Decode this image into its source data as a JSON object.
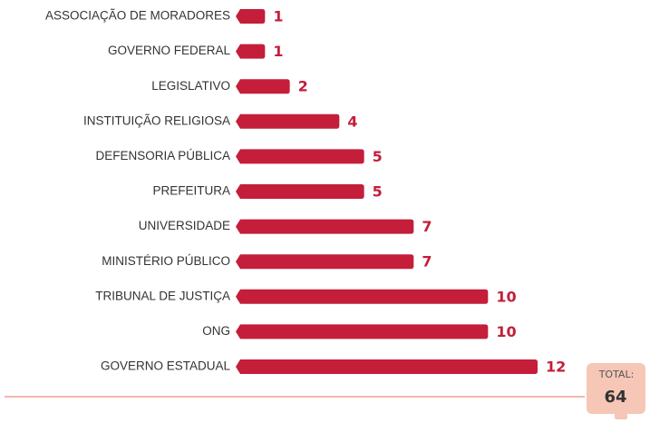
{
  "chart_data": {
    "type": "hbar",
    "categories": [
      "ASSOCIAÇÃO DE MORADORES",
      "GOVERNO FEDERAL",
      "LEGISLATIVO",
      "INSTITUIÇÃO RELIGIOSA",
      "DEFENSORIA PÚBLICA",
      "PREFEITURA",
      "UNIVERSIDADE",
      "MINISTÉRIO PÚBLICO",
      "TRIBUNAL DE JUSTIÇA",
      "ONG",
      "GOVERNO ESTADUAL"
    ],
    "values": [
      1,
      1,
      2,
      4,
      5,
      5,
      7,
      7,
      10,
      10,
      12
    ],
    "color": "#c41e3a",
    "total_label": "TOTAL:",
    "total": 64
  }
}
